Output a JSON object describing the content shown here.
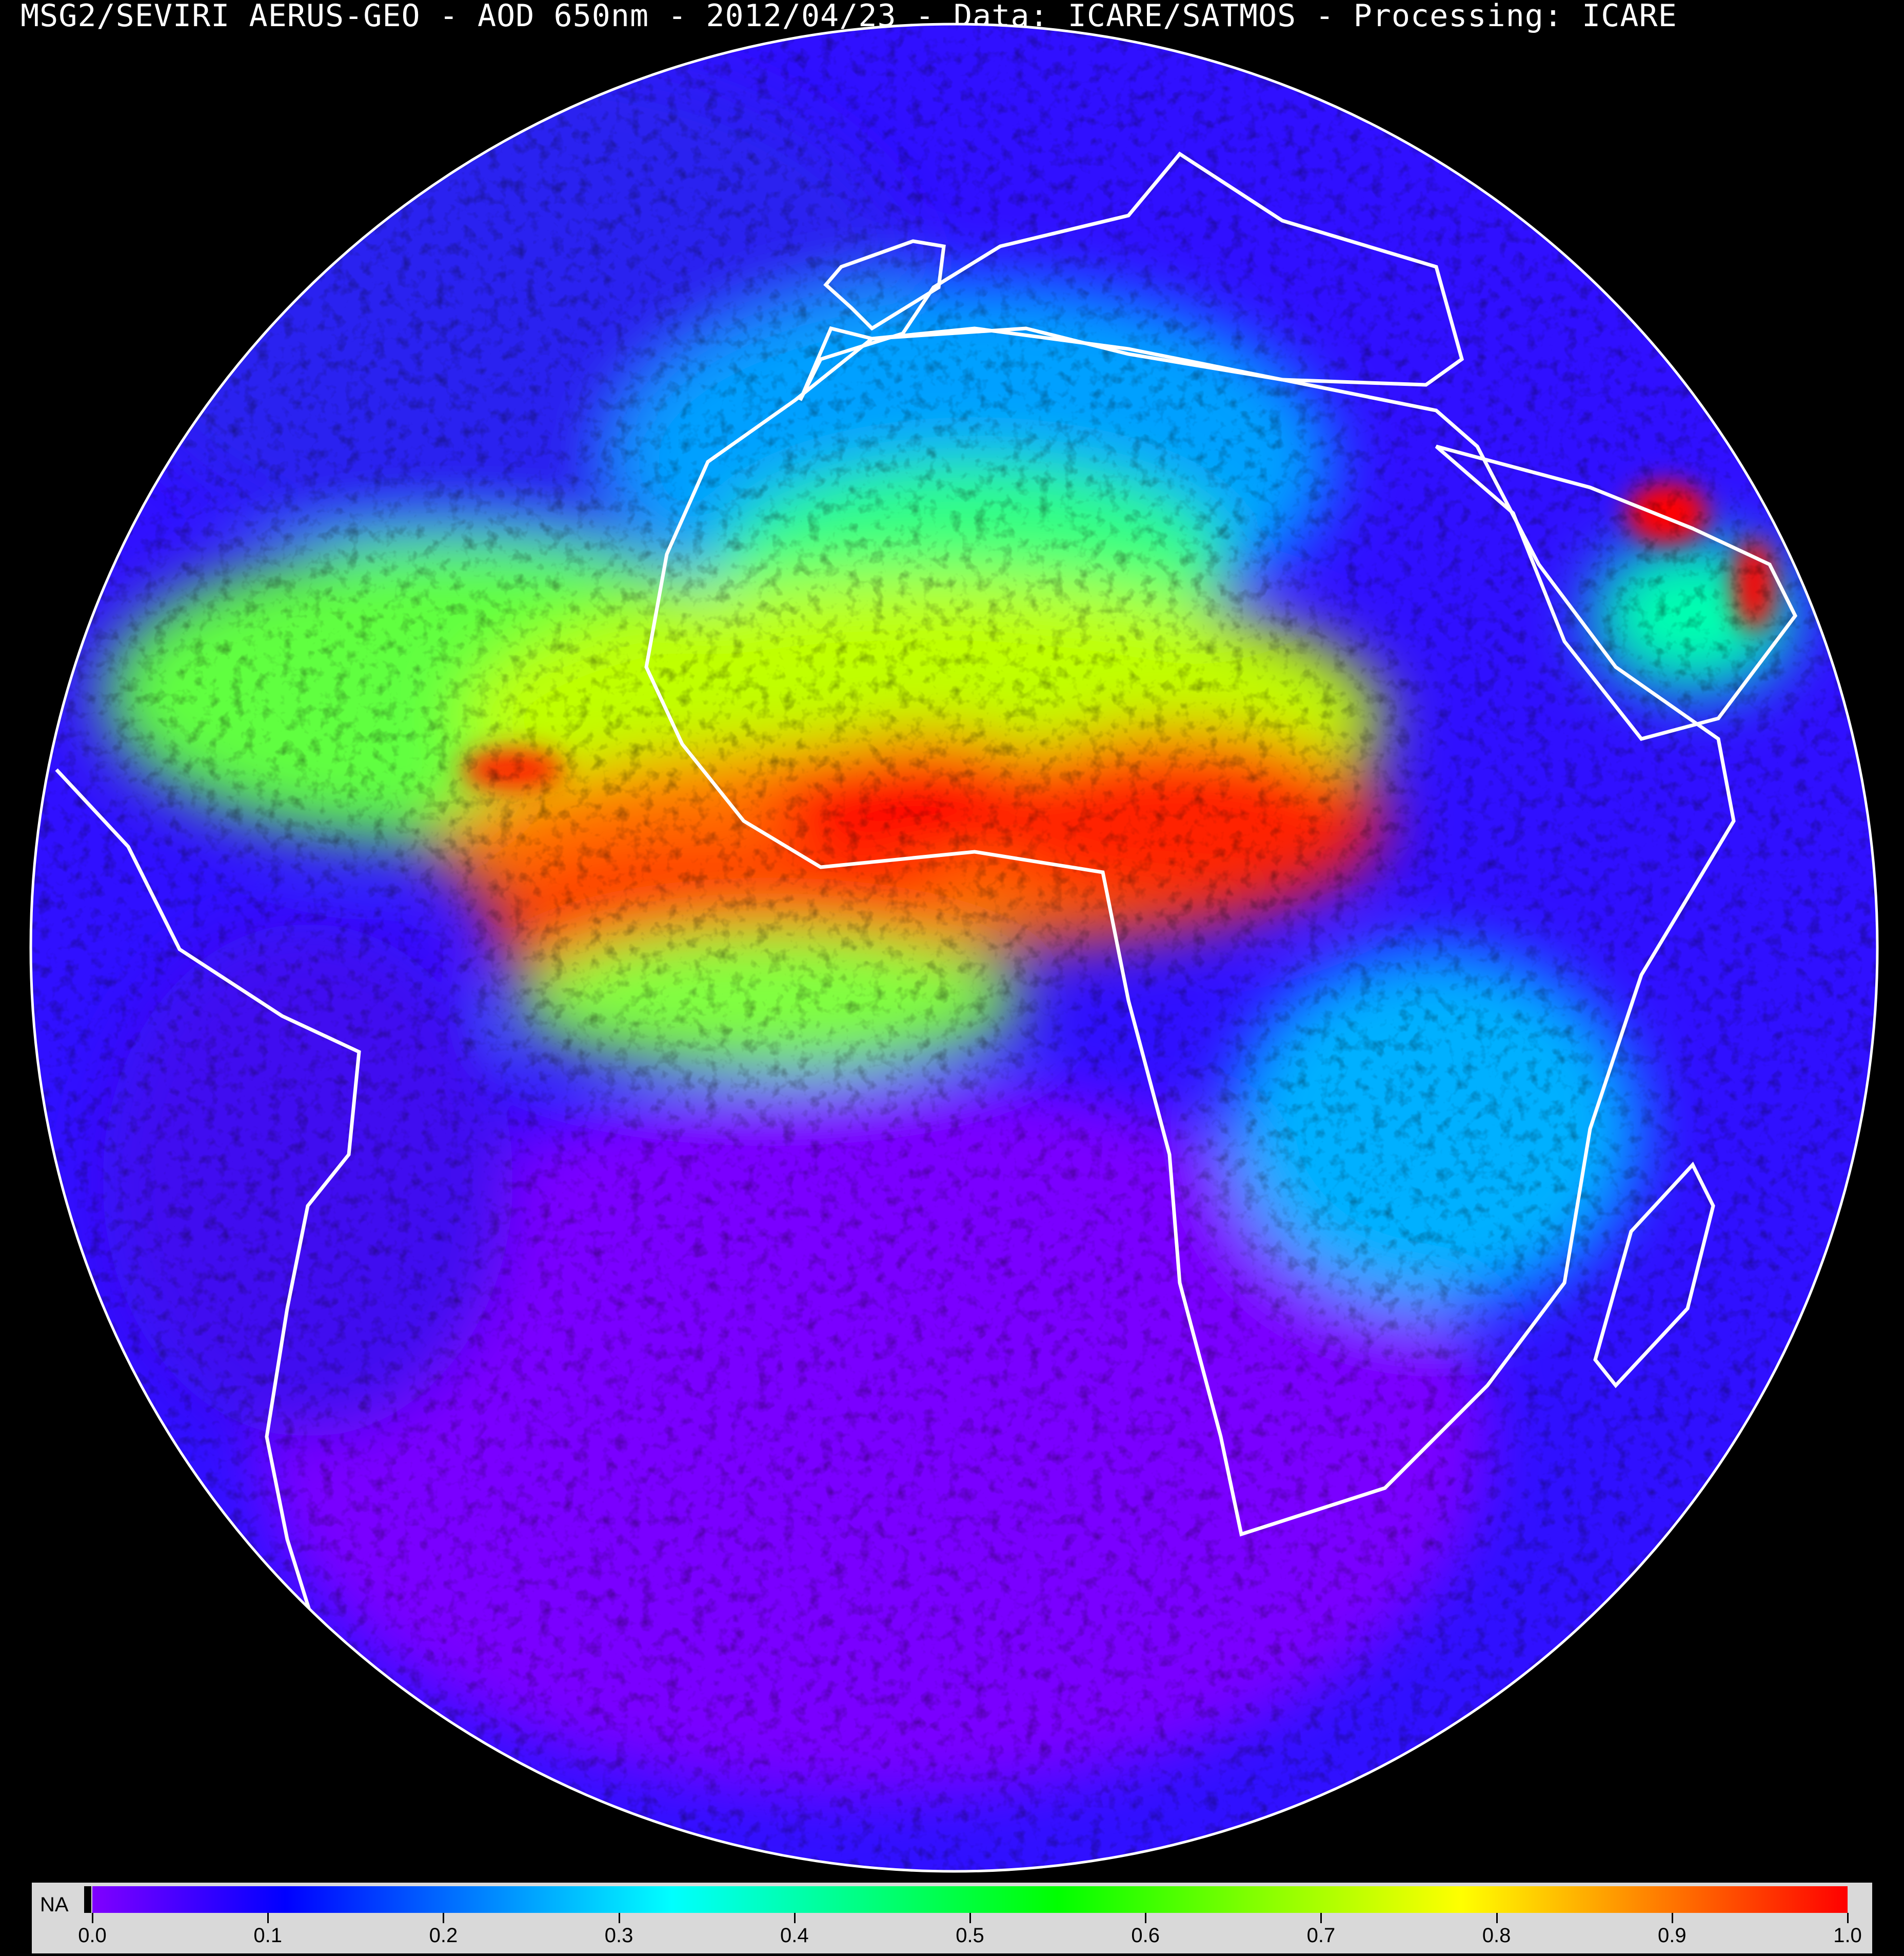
{
  "title": "MSG2/SEVIRI AERUS-GEO - AOD 650nm - 2012/04/23 - Data: ICARE/SATMOS - Processing: ICARE",
  "colorbar": {
    "na_label": "NA",
    "na_color": "#000000",
    "min": 0.0,
    "max": 1.0,
    "ticks": [
      "0.0",
      "0.1",
      "0.2",
      "0.3",
      "0.4",
      "0.5",
      "0.6",
      "0.7",
      "0.8",
      "0.9",
      "1.0"
    ],
    "colors": [
      "#8000ff",
      "#0000ff",
      "#0080ff",
      "#00ffff",
      "#00ff80",
      "#00ff00",
      "#80ff00",
      "#ffff00",
      "#ff8000",
      "#ff0000"
    ]
  },
  "map": {
    "projection": "geostationary full disk",
    "coastline_color": "#ffffff",
    "background_color": "#000000"
  }
}
